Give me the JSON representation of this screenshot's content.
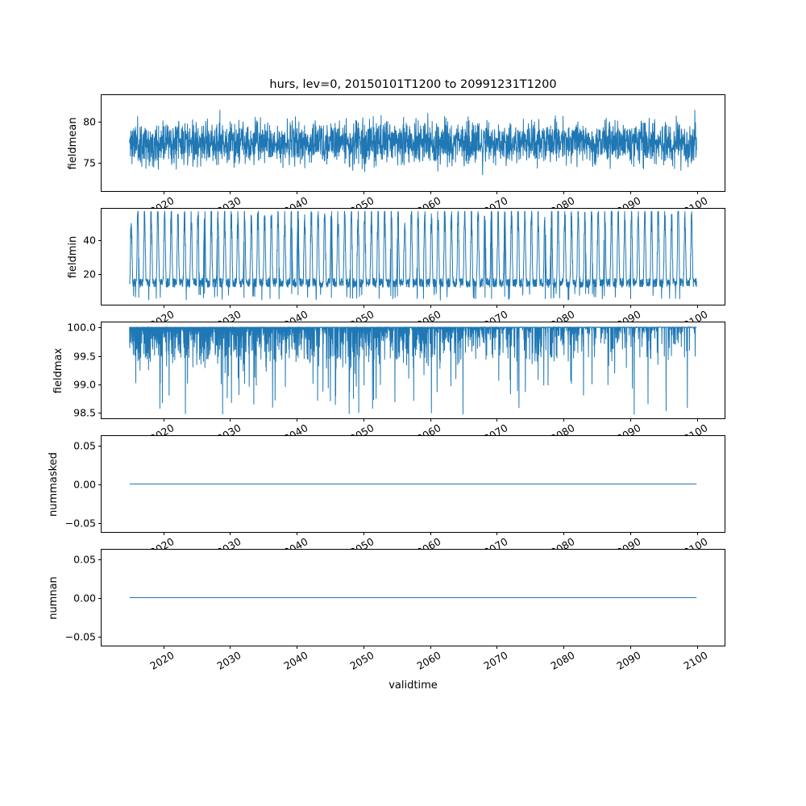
{
  "title": "hurs, lev=0, 20150101T1200 to 20991231T1200",
  "x_axis": {
    "label": "validtime",
    "xlim": [
      2010.8,
      2104.2
    ],
    "tick_values": [
      2020,
      2030,
      2040,
      2050,
      2060,
      2070,
      2080,
      2090,
      2100
    ],
    "tick_labels": [
      "2020",
      "2030",
      "2040",
      "2050",
      "2060",
      "2070",
      "2080",
      "2090",
      "2100"
    ],
    "data_start": 2015,
    "data_end": 2100
  },
  "chart_data": [
    {
      "type": "line",
      "series_name": "fieldmean",
      "ylabel": "fieldmean",
      "color": "#1f77b4",
      "grid": false,
      "ylim": [
        71.5,
        83.2
      ],
      "yticks": [
        75,
        80
      ],
      "ytick_labels": [
        "75",
        "80"
      ],
      "approx_value_range": [
        72.2,
        82.6
      ],
      "description": "dense high-frequency noise band centered near 77.5",
      "signal": {
        "kind": "noise",
        "base": 77.4,
        "band": 2.6,
        "spike": 2.6,
        "spike_prob": 0.03,
        "points": 2600,
        "seed": 11
      }
    },
    {
      "type": "line",
      "series_name": "fieldmin",
      "ylabel": "fieldmin",
      "color": "#1f77b4",
      "grid": false,
      "ylim": [
        2,
        58
      ],
      "yticks": [
        20,
        40
      ],
      "ytick_labels": [
        "20",
        "40"
      ],
      "approx_value_range": [
        4.5,
        56
      ],
      "description": "annual comb pattern: baseline near 13-20 with yearly peaks to 40-55",
      "signal": {
        "kind": "seasonal",
        "base": 12,
        "base_noise": 5.5,
        "peak": 30,
        "peak_noise": 14,
        "cycles_per_year": 1,
        "points": 3400,
        "seed": 22
      }
    },
    {
      "type": "line",
      "series_name": "fieldmax",
      "ylabel": "fieldmax",
      "color": "#1f77b4",
      "grid": false,
      "ylim": [
        98.4,
        100.08
      ],
      "yticks": [
        98.5,
        99.0,
        99.5,
        100.0
      ],
      "ytick_labels": [
        "98.5",
        "99.0",
        "99.5",
        "100.0"
      ],
      "approx_value_range": [
        98.45,
        100.0
      ],
      "description": "saturated at 100 with downward dips, dense before ~2055 and sparser after",
      "signal": {
        "kind": "capped",
        "cap": 100,
        "max_dip": 1.55,
        "dense_prob": 0.92,
        "sparse_prob": 0.3,
        "points": 3200,
        "seed": 33
      }
    },
    {
      "type": "line",
      "series_name": "nummasked",
      "ylabel": "nummasked",
      "color": "#1f77b4",
      "grid": false,
      "ylim": [
        -0.062,
        0.062
      ],
      "yticks": [
        -0.05,
        0.0,
        0.05
      ],
      "ytick_labels": [
        "−0.05",
        "0.00",
        "0.05"
      ],
      "approx_value_range": [
        0,
        0
      ],
      "description": "constant zero line",
      "signal": {
        "kind": "constant",
        "value": 0
      }
    },
    {
      "type": "line",
      "series_name": "numnan",
      "ylabel": "numnan",
      "color": "#1f77b4",
      "grid": false,
      "ylim": [
        -0.062,
        0.062
      ],
      "yticks": [
        -0.05,
        0.0,
        0.05
      ],
      "ytick_labels": [
        "−0.05",
        "0.00",
        "0.05"
      ],
      "approx_value_range": [
        0,
        0
      ],
      "description": "constant zero line",
      "signal": {
        "kind": "constant",
        "value": 0
      }
    }
  ]
}
